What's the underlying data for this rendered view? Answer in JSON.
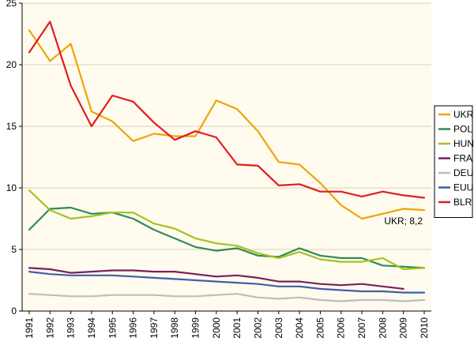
{
  "chart_data": {
    "type": "line",
    "title": "",
    "xlabel": "",
    "ylabel": "",
    "ylim": [
      0,
      25
    ],
    "yticks": [
      0,
      5,
      10,
      15,
      20,
      25
    ],
    "grid": true,
    "legend_position": "right",
    "x": [
      "1991",
      "1992",
      "1993",
      "1994",
      "1995",
      "1996",
      "1997",
      "1998",
      "1999",
      "2000",
      "2001",
      "2002",
      "2003",
      "2004",
      "2005",
      "2006",
      "2007",
      "2008",
      "2009",
      "2010"
    ],
    "series": [
      {
        "name": "UKR",
        "color": "#F0A30A",
        "values": [
          22.8,
          20.3,
          21.7,
          16.2,
          15.4,
          13.8,
          14.4,
          14.2,
          14.2,
          17.1,
          16.4,
          14.6,
          12.1,
          11.9,
          10.4,
          8.6,
          7.5,
          7.9,
          8.3,
          8.2
        ]
      },
      {
        "name": "POL",
        "color": "#2E8B57",
        "values": [
          6.6,
          8.3,
          8.4,
          7.9,
          8.0,
          7.5,
          6.6,
          5.9,
          5.2,
          4.9,
          5.1,
          4.5,
          4.4,
          5.1,
          4.5,
          4.3,
          4.3,
          3.7,
          3.6,
          3.5
        ]
      },
      {
        "name": "HUN",
        "color": "#A6C21E",
        "values": [
          9.8,
          8.2,
          7.5,
          7.7,
          8.0,
          8.0,
          7.1,
          6.7,
          5.9,
          5.5,
          5.3,
          4.7,
          4.3,
          4.8,
          4.2,
          4.0,
          4.0,
          4.3,
          3.4,
          3.5
        ]
      },
      {
        "name": "FRA",
        "color": "#7B1F5C",
        "values": [
          3.5,
          3.4,
          3.1,
          3.2,
          3.3,
          3.3,
          3.2,
          3.2,
          3.0,
          2.8,
          2.9,
          2.7,
          2.4,
          2.4,
          2.2,
          2.1,
          2.2,
          2.0,
          1.8,
          null
        ]
      },
      {
        "name": "DEU",
        "color": "#BDBDBD",
        "values": [
          1.4,
          1.3,
          1.2,
          1.2,
          1.3,
          1.3,
          1.3,
          1.2,
          1.2,
          1.3,
          1.4,
          1.1,
          1.0,
          1.1,
          0.9,
          0.8,
          0.9,
          0.9,
          0.8,
          0.9
        ]
      },
      {
        "name": "EUU",
        "color": "#3F5FA8",
        "values": [
          3.2,
          3.0,
          2.9,
          2.9,
          2.9,
          2.8,
          2.7,
          2.6,
          2.5,
          2.4,
          2.3,
          2.2,
          2.0,
          2.0,
          1.8,
          1.7,
          1.6,
          1.6,
          1.5,
          1.5
        ]
      },
      {
        "name": "BLR",
        "color": "#E01E1E",
        "values": [
          21.0,
          23.5,
          18.3,
          15.0,
          17.5,
          17.0,
          15.3,
          13.9,
          14.6,
          14.1,
          11.9,
          11.8,
          10.2,
          10.3,
          9.7,
          9.7,
          9.3,
          9.7,
          9.4,
          9.2
        ]
      }
    ],
    "annotations": [
      {
        "text": "UKR; 8,2",
        "x": "2009",
        "y": 7.3
      }
    ]
  }
}
